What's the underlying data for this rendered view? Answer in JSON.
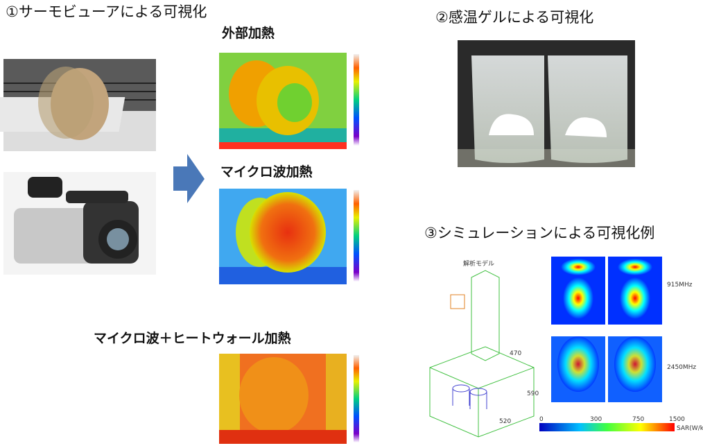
{
  "section1": {
    "title": "①サーモビューアによる可視化",
    "panels": [
      {
        "label": "外部加熱"
      },
      {
        "label": "マイクロ波加熱"
      },
      {
        "label": "マイクロ波＋ヒートウォール加熱"
      }
    ]
  },
  "section2": {
    "title": "②感温ゲルによる可視化"
  },
  "section3": {
    "title": "③シミュレーションによる可視化例",
    "model_label": "解析モデル",
    "frequencies": [
      "915MHz",
      "2450MHz"
    ],
    "colorbar": {
      "ticks": [
        "0",
        "300",
        "750",
        "1500"
      ],
      "unit": "SAR(W/kg)"
    },
    "dimensions": [
      "470",
      "590",
      "520"
    ]
  }
}
